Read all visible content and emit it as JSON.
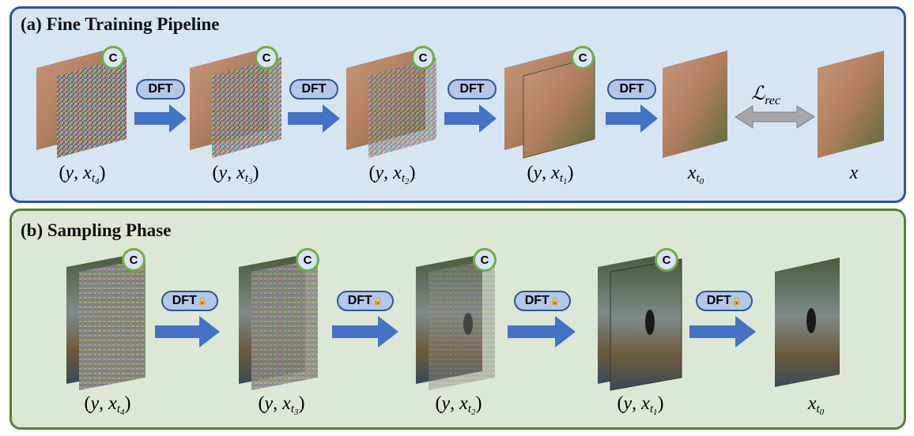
{
  "panel_a": {
    "title": "(a) Fine Training Pipeline",
    "labels": [
      {
        "pre": "(",
        "v1": "y",
        "comma": ", ",
        "v2": "x",
        "sub": "t",
        "subsub": "4",
        "post": ")"
      },
      {
        "pre": "(",
        "v1": "y",
        "comma": ", ",
        "v2": "x",
        "sub": "t",
        "subsub": "3",
        "post": ")"
      },
      {
        "pre": "(",
        "v1": "y",
        "comma": ", ",
        "v2": "x",
        "sub": "t",
        "subsub": "2",
        "post": ")"
      },
      {
        "pre": "(",
        "v1": "y",
        "comma": ", ",
        "v2": "x",
        "sub": "t",
        "subsub": "1",
        "post": ")"
      }
    ],
    "x_t0": {
      "v": "x",
      "sub": "t",
      "subsub": "0"
    },
    "x_label": "x",
    "dft_label": "DFT",
    "loss": {
      "main": "ℒ",
      "sub": "rec"
    },
    "badge": "C"
  },
  "panel_b": {
    "title": "(b) Sampling Phase",
    "labels": [
      {
        "pre": "(",
        "v1": "y",
        "comma": ", ",
        "v2": "x",
        "sub": "t",
        "subsub": "4",
        "post": ")"
      },
      {
        "pre": "(",
        "v1": "y",
        "comma": ", ",
        "v2": "x",
        "sub": "t",
        "subsub": "3",
        "post": ")"
      },
      {
        "pre": "(",
        "v1": "y",
        "comma": ", ",
        "v2": "x",
        "sub": "t",
        "subsub": "2",
        "post": ")"
      },
      {
        "pre": "(",
        "v1": "y",
        "comma": ", ",
        "v2": "x",
        "sub": "t",
        "subsub": "1",
        "post": ")"
      }
    ],
    "x_t0": {
      "v": "x",
      "sub": "t",
      "subsub": "0"
    },
    "dft_label": "DFT",
    "lock_icon": "🔒",
    "badge": "C"
  },
  "colors": {
    "panel_a_bg": "#d6e5f2",
    "panel_a_border": "#2f5597",
    "panel_b_bg": "#dce8d5",
    "panel_b_border": "#548235",
    "arrow": "#4472c4",
    "loss_arrow": "#a6a6a6"
  }
}
